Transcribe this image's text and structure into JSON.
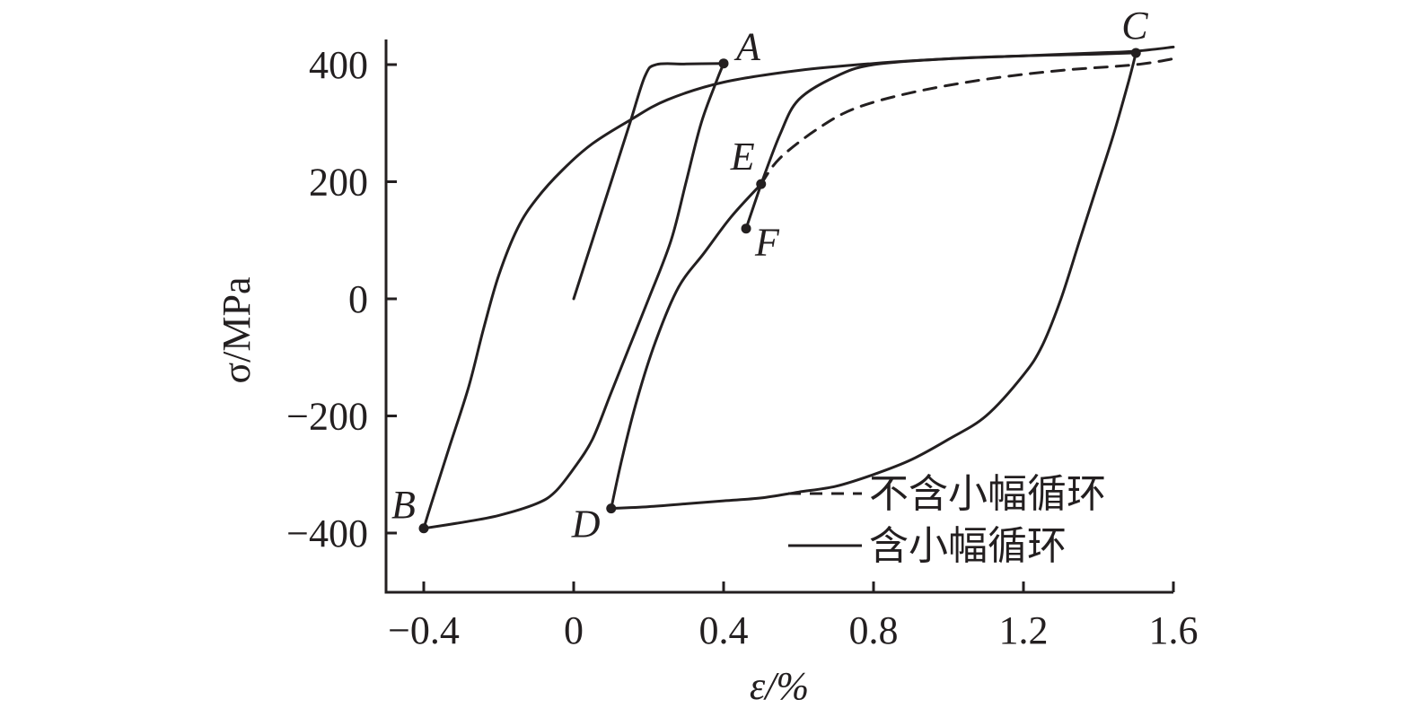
{
  "chart_data": {
    "type": "line",
    "title": "",
    "xlabel": "ε/%",
    "ylabel": "σ/MPa",
    "xlim": [
      -0.5,
      1.6
    ],
    "ylim": [
      -500,
      400
    ],
    "xticks": [
      -0.4,
      0,
      0.4,
      0.8,
      1.2,
      1.6
    ],
    "xtick_labels": [
      "−0.4",
      "0",
      "0.4",
      "0.8",
      "1.2",
      "1.6"
    ],
    "yticks": [
      400,
      200,
      0,
      -200,
      -400
    ],
    "ytick_labels": [
      "400",
      "200",
      "0",
      "−200",
      "−400"
    ],
    "grid": false,
    "legend_position": "bottom-right",
    "color": "#231f20",
    "series": [
      {
        "name": "含小幅循环",
        "style": "solid",
        "segments": [
          [
            [
              0.0,
              0
            ],
            [
              0.05,
              100
            ],
            [
              0.1,
              200
            ],
            [
              0.15,
              300
            ],
            [
              0.19,
              380
            ],
            [
              0.22,
              400
            ],
            [
              0.3,
              401
            ],
            [
              0.4,
              402
            ]
          ],
          [
            [
              0.4,
              402
            ],
            [
              0.38,
              370
            ],
            [
              0.34,
              300
            ],
            [
              0.3,
              200
            ],
            [
              0.26,
              100
            ],
            [
              0.2,
              0
            ],
            [
              0.15,
              -80
            ],
            [
              0.1,
              -160
            ],
            [
              0.05,
              -240
            ],
            [
              0.0,
              -290
            ],
            [
              -0.05,
              -330
            ],
            [
              -0.1,
              -350
            ],
            [
              -0.2,
              -370
            ],
            [
              -0.3,
              -382
            ],
            [
              -0.4,
              -392
            ]
          ],
          [
            [
              -0.4,
              -392
            ],
            [
              -0.38,
              -350
            ],
            [
              -0.33,
              -250
            ],
            [
              -0.28,
              -150
            ],
            [
              -0.24,
              -50
            ],
            [
              -0.2,
              40
            ],
            [
              -0.15,
              120
            ],
            [
              -0.1,
              170
            ],
            [
              -0.03,
              220
            ],
            [
              0.05,
              265
            ],
            [
              0.15,
              305
            ],
            [
              0.25,
              340
            ],
            [
              0.4,
              370
            ],
            [
              0.6,
              390
            ],
            [
              0.8,
              402
            ],
            [
              1.0,
              410
            ],
            [
              1.2,
              415
            ],
            [
              1.4,
              418
            ],
            [
              1.5,
              420
            ]
          ],
          [
            [
              1.5,
              420
            ],
            [
              1.48,
              370
            ],
            [
              1.44,
              280
            ],
            [
              1.4,
              200
            ],
            [
              1.35,
              100
            ],
            [
              1.3,
              0
            ],
            [
              1.25,
              -80
            ],
            [
              1.2,
              -130
            ],
            [
              1.1,
              -200
            ],
            [
              1.0,
              -240
            ],
            [
              0.9,
              -275
            ],
            [
              0.8,
              -300
            ],
            [
              0.7,
              -320
            ],
            [
              0.6,
              -330
            ],
            [
              0.5,
              -340
            ],
            [
              0.4,
              -345
            ],
            [
              0.3,
              -350
            ],
            [
              0.2,
              -355
            ],
            [
              0.1,
              -358
            ]
          ],
          [
            [
              0.1,
              -358
            ],
            [
              0.13,
              -270
            ],
            [
              0.17,
              -170
            ],
            [
              0.22,
              -70
            ],
            [
              0.28,
              20
            ],
            [
              0.35,
              80
            ],
            [
              0.42,
              140
            ],
            [
              0.5,
              196
            ]
          ],
          [
            [
              0.5,
              196
            ],
            [
              0.46,
              120
            ]
          ],
          [
            [
              0.5,
              196
            ],
            [
              0.55,
              280
            ],
            [
              0.6,
              340
            ],
            [
              0.7,
              380
            ],
            [
              0.8,
              400
            ],
            [
              1.0,
              410
            ],
            [
              1.2,
              415
            ],
            [
              1.4,
              420
            ],
            [
              1.5,
              423
            ],
            [
              1.6,
              430
            ]
          ]
        ]
      },
      {
        "name": "不含小幅循环",
        "style": "dashed",
        "segments": [
          [
            [
              0.5,
              196
            ],
            [
              0.55,
              240
            ],
            [
              0.65,
              290
            ],
            [
              0.75,
              325
            ],
            [
              0.9,
              352
            ],
            [
              1.1,
              375
            ],
            [
              1.3,
              390
            ],
            [
              1.5,
              400
            ],
            [
              1.6,
              410
            ]
          ]
        ]
      }
    ],
    "points": [
      {
        "label": "A",
        "x": 0.4,
        "y": 402
      },
      {
        "label": "B",
        "x": -0.4,
        "y": -392
      },
      {
        "label": "C",
        "x": 1.5,
        "y": 420
      },
      {
        "label": "D",
        "x": 0.1,
        "y": -358
      },
      {
        "label": "E",
        "x": 0.5,
        "y": 196
      },
      {
        "label": "F",
        "x": 0.46,
        "y": 120
      }
    ]
  }
}
